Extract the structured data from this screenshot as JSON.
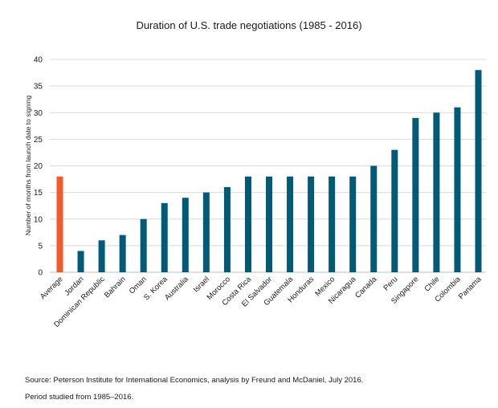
{
  "chart_data": {
    "type": "bar",
    "title": "Duration of U.S. trade negotiations (1985 - 2016)",
    "xlabel": "",
    "ylabel": "Number of months from launch date to signing",
    "ylim": [
      0,
      40
    ],
    "yticks": [
      0,
      5,
      10,
      15,
      20,
      25,
      30,
      35,
      40
    ],
    "grid": true,
    "categories": [
      "Average",
      "Jordan",
      "Dominican Republic",
      "Bahrain",
      "Oman",
      "S. Korea",
      "Australia",
      "Israel",
      "Morocco",
      "Costa Rica",
      "El Salvador",
      "Guatemala",
      "Honduras",
      "Mexico",
      "Nicaragua",
      "Canada",
      "Peru",
      "Singapore",
      "Chile",
      "Colombia",
      "Panama"
    ],
    "values": [
      18,
      4,
      6,
      7,
      10,
      13,
      14,
      15,
      16,
      18,
      18,
      18,
      18,
      18,
      18,
      20,
      23,
      29,
      30,
      31,
      38
    ],
    "colors": {
      "highlight": "#f15a29",
      "bar": "#005a78",
      "grid": "#d9d9d9"
    },
    "highlight_category": "Average"
  },
  "footer": {
    "source": "Source: Peterson Institute for International Economics, analysis by Freund and McDaniel, July 2016.",
    "period": "Period studied from 1985–2016."
  }
}
